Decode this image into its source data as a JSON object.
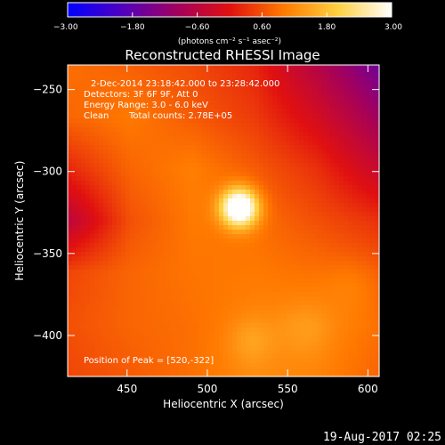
{
  "window": {
    "timestamp": "19-Aug-2017 02:25"
  },
  "chart_data": {
    "type": "heatmap",
    "title": "Reconstructed RHESSI Image",
    "xlabel": "Heliocentric X (arcsec)",
    "ylabel": "Heliocentric Y (arcsec)",
    "xlim": [
      413,
      607
    ],
    "ylim": [
      -425,
      -235
    ],
    "x_ticks": [
      450,
      500,
      550,
      600
    ],
    "y_ticks": [
      -250,
      -300,
      -350,
      -400
    ],
    "x_tick_labels": [
      "450",
      "500",
      "550",
      "600"
    ],
    "y_tick_labels": [
      "−250",
      "−300",
      "−350",
      "−400"
    ],
    "colorbar": {
      "label": "(photons cm⁻² s⁻¹ asec⁻²)",
      "range": [
        -3.0,
        3.0
      ],
      "tick_values": [
        -3.0,
        -1.8,
        -0.6,
        0.6,
        1.8,
        3.0
      ],
      "tick_labels": [
        "−3.00",
        "−1.80",
        "−0.60",
        "0.60",
        "1.80",
        "3.00"
      ],
      "colormap_stops": [
        "#0000ff",
        "#5000c0",
        "#a00060",
        "#e01010",
        "#ff7a00",
        "#ffd040",
        "#ffffff"
      ]
    },
    "annotations": [
      "2-Dec-2014 23:18:42.000 to 23:28:42.000",
      "Detectors: 3F 6F 9F, Att 0",
      "Energy Range: 3.0 - 6.0 keV",
      "Clean",
      "Total counts: 2.78E+05"
    ],
    "peak_label": "Position of Peak = [520,-322]",
    "peak": {
      "x": 520,
      "y": -322
    },
    "background_levels": [
      [
        0.9,
        0.75,
        0.55,
        0.2,
        -0.7,
        -1.6
      ],
      [
        0.8,
        1.0,
        0.7,
        0.4,
        -0.2,
        -1.0
      ],
      [
        0.2,
        0.8,
        1.05,
        0.7,
        0.3,
        -0.4
      ],
      [
        -0.6,
        0.6,
        1.0,
        0.9,
        0.6,
        0.3
      ],
      [
        0.5,
        0.8,
        0.95,
        1.0,
        0.9,
        0.7
      ],
      [
        0.6,
        0.8,
        0.9,
        1.1,
        1.15,
        0.9
      ],
      [
        0.5,
        0.7,
        0.9,
        1.2,
        1.1,
        0.8
      ]
    ],
    "sources": [
      {
        "x": 520,
        "y": -322,
        "amplitude": 3.0,
        "sigma": 8
      },
      {
        "x": 527,
        "y": -403,
        "amplitude": 0.35,
        "sigma": 10
      },
      {
        "x": 560,
        "y": -396,
        "amplitude": 0.25,
        "sigma": 12
      },
      {
        "x": 590,
        "y": -370,
        "amplitude": 0.2,
        "sigma": 12
      }
    ]
  }
}
